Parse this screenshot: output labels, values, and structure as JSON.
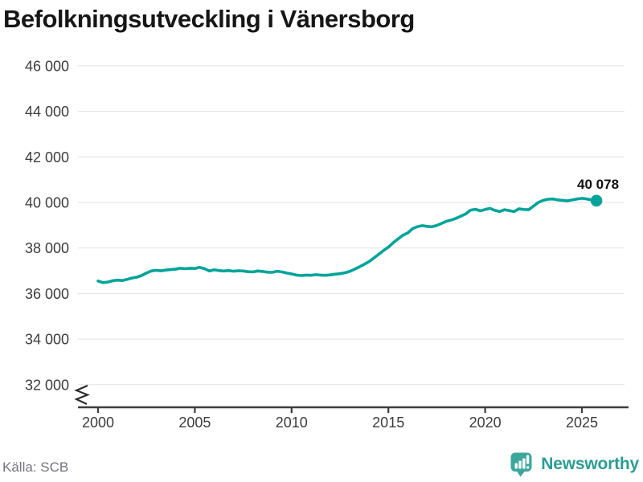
{
  "title": "Befolkningsutveckling i Vänersborg",
  "source": "Källa: SCB",
  "brand": {
    "name": "Newsworthy"
  },
  "colors": {
    "line": "#00a39a",
    "marker": "#00a39a",
    "grid": "#e1e1e1",
    "axis": "#3d3d3d",
    "tick_text": "#3c3c3c",
    "title_text": "#161616",
    "end_label_text": "#111111",
    "source_text": "#75757d",
    "brand_teal": "#2b9c93",
    "brand_icon_teal": "#3ba79c",
    "background": "#ffffff"
  },
  "chart_data": {
    "type": "line",
    "title": "Befolkningsutveckling i Vänersborg",
    "xlabel": "",
    "ylabel": "",
    "grid": true,
    "legend": false,
    "axis_break": true,
    "xlim": [
      1999,
      2027.4
    ],
    "ylim": [
      31600,
      46800
    ],
    "yticks": [
      46000,
      44000,
      42000,
      40000,
      38000,
      36000,
      34000,
      32000
    ],
    "ytick_labels": [
      "46 000",
      "44 000",
      "42 000",
      "40 000",
      "38 000",
      "36 000",
      "34 000",
      "32 000"
    ],
    "xticks": [
      2000,
      2005,
      2010,
      2015,
      2020,
      2025
    ],
    "xtick_labels": [
      "2000",
      "2005",
      "2010",
      "2015",
      "2020",
      "2025"
    ],
    "series_name": "Befolkning",
    "start_year": 2000,
    "interval_years": 0.25,
    "end_value": 40078,
    "end_label": "40 078",
    "values": [
      36550,
      36480,
      36500,
      36560,
      36590,
      36570,
      36620,
      36680,
      36720,
      36790,
      36900,
      36990,
      37020,
      37000,
      37030,
      37050,
      37070,
      37110,
      37090,
      37110,
      37100,
      37150,
      37090,
      36990,
      37040,
      37010,
      36990,
      37010,
      36980,
      37000,
      36990,
      36960,
      36950,
      36990,
      36970,
      36940,
      36930,
      36980,
      36950,
      36900,
      36860,
      36810,
      36790,
      36810,
      36800,
      36830,
      36810,
      36800,
      36820,
      36850,
      36870,
      36910,
      36970,
      37070,
      37170,
      37280,
      37400,
      37560,
      37720,
      37890,
      38040,
      38230,
      38400,
      38560,
      38660,
      38850,
      38940,
      38980,
      38950,
      38930,
      38990,
      39080,
      39170,
      39230,
      39300,
      39400,
      39500,
      39660,
      39700,
      39630,
      39690,
      39740,
      39650,
      39600,
      39680,
      39640,
      39600,
      39720,
      39690,
      39680,
      39840,
      40000,
      40090,
      40140,
      40150,
      40110,
      40090,
      40070,
      40110,
      40150,
      40180,
      40150,
      40110,
      40078
    ]
  }
}
